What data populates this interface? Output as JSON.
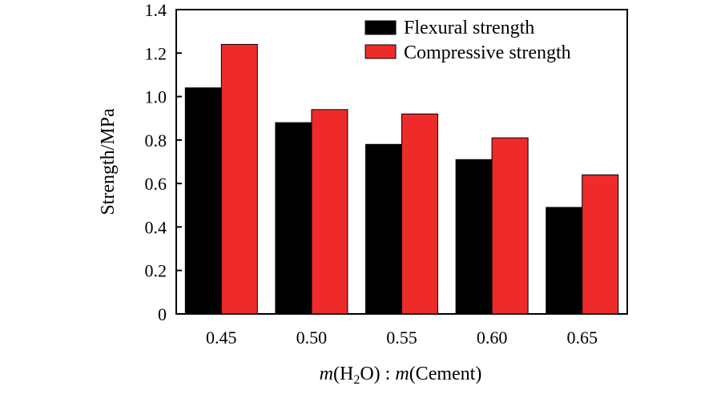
{
  "chart_data": {
    "type": "bar",
    "title": "",
    "categories": [
      "0.45",
      "0.50",
      "0.55",
      "0.60",
      "0.65"
    ],
    "series": [
      {
        "name": "Flexural strength",
        "color": "#000000",
        "values": [
          1.04,
          0.88,
          0.78,
          0.71,
          0.49
        ]
      },
      {
        "name": "Compressive strength",
        "color": "#ee2b2a",
        "values": [
          1.24,
          0.94,
          0.92,
          0.81,
          0.64
        ]
      }
    ],
    "yticks": [
      "0",
      "0.2",
      "0.4",
      "0.6",
      "0.8",
      "1.0",
      "1.2",
      "1.4"
    ],
    "ylim": [
      0,
      1.4
    ],
    "ylabel": "Strength/MPa",
    "xlabel": {
      "m1": "m",
      "open1": "(H",
      "sub": "2",
      "close1": "O)",
      "colon": " : ",
      "m2": "m",
      "cement": "(Cement)"
    },
    "legend_position": "top-right"
  }
}
